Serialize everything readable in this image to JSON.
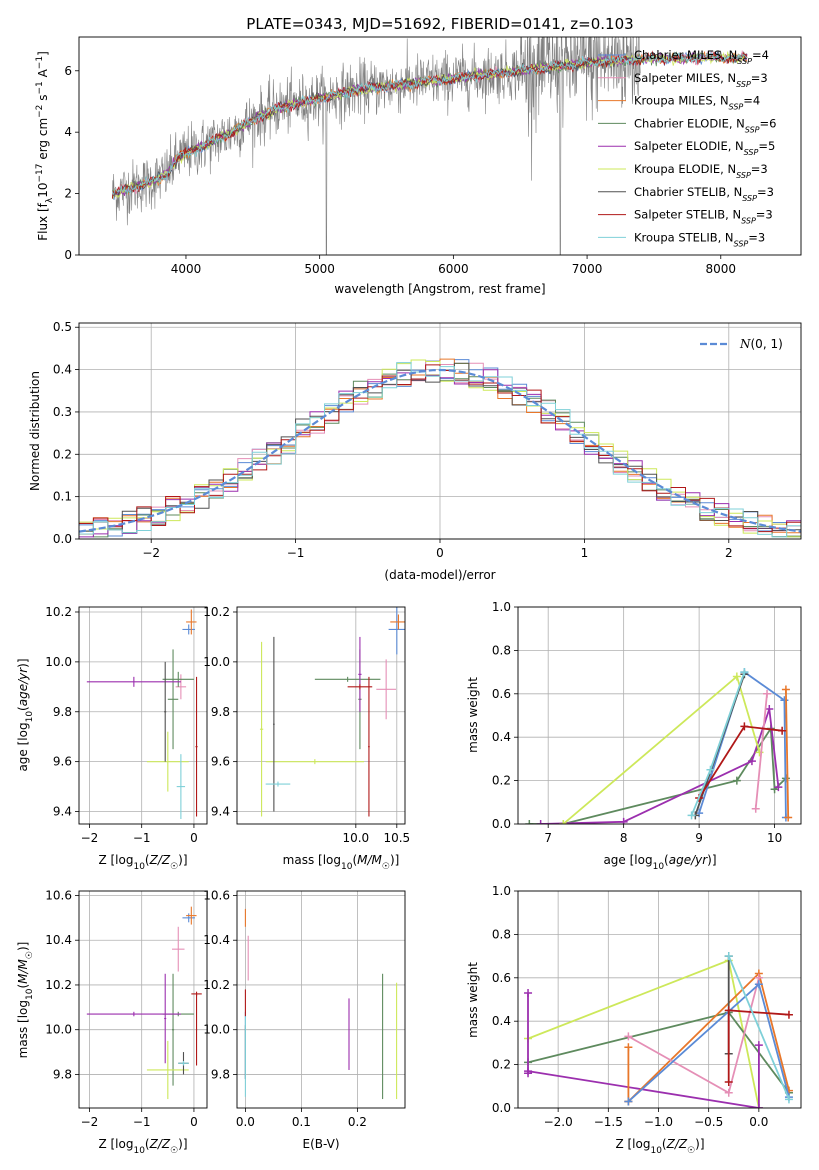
{
  "figure": {
    "title": "PLATE=0343, MJD=51692, FIBERID=0141, z=0.103"
  },
  "series_names": [
    "Chabrier MILES, N_SSP=4",
    "Salpeter MILES, N_SSP=3",
    "Kroupa MILES, N_SSP=4",
    "Chabrier ELODIE, N_SSP=6",
    "Salpeter ELODIE, N_SSP=5",
    "Kroupa ELODIE, N_SSP=3",
    "Chabrier STELIB, N_SSP=3",
    "Salpeter STELIB, N_SSP=3",
    "Kroupa STELIB, N_SSP=3"
  ],
  "colors": {
    "observed": "#808080",
    "chabrier_miles": "#5b8bd6",
    "salpeter_miles": "#e58fb6",
    "kroupa_miles": "#e8772a",
    "chabrier_elodie": "#5e8a5e",
    "salpeter_elodie": "#9b2fae",
    "kroupa_elodie": "#cde85a",
    "chabrier_stelib": "#505050",
    "salpeter_stelib": "#b01818",
    "kroupa_stelib": "#7fd0d8",
    "normal_curve": "#5b8bd6",
    "grid": "#b0b0b0"
  },
  "chart_data": [
    {
      "id": "spectrum",
      "type": "line",
      "xlabel": "wavelength [Angstrom, rest frame]",
      "ylabel": "Flux [f_λ10^-17 erg cm^-2 s^-1 A^-1]",
      "xlim": [
        3200,
        8600
      ],
      "ylim": [
        0,
        7.1
      ],
      "xticks": [
        4000,
        5000,
        6000,
        7000,
        8000
      ],
      "yticks": [
        0,
        2,
        4,
        6
      ],
      "grid": false,
      "legend": "right",
      "continuum_points": [
        [
          3450,
          2.0
        ],
        [
          3600,
          2.2
        ],
        [
          3750,
          2.4
        ],
        [
          3850,
          2.6
        ],
        [
          3950,
          3.2
        ],
        [
          4100,
          3.5
        ],
        [
          4300,
          3.9
        ],
        [
          4500,
          4.4
        ],
        [
          4700,
          4.8
        ],
        [
          4900,
          5.0
        ],
        [
          5100,
          5.2
        ],
        [
          5300,
          5.4
        ],
        [
          5500,
          5.5
        ],
        [
          5700,
          5.6
        ],
        [
          5900,
          5.7
        ],
        [
          6100,
          5.8
        ],
        [
          6300,
          5.9
        ],
        [
          6500,
          6.0
        ],
        [
          6700,
          6.1
        ],
        [
          6900,
          6.2
        ],
        [
          7100,
          6.3
        ],
        [
          7300,
          6.35
        ],
        [
          7500,
          6.4
        ],
        [
          7700,
          6.4
        ],
        [
          7900,
          6.45
        ],
        [
          8100,
          6.4
        ],
        [
          8200,
          6.45
        ]
      ],
      "observed_range": [
        3450,
        7400
      ],
      "model_range": [
        3450,
        8200
      ]
    },
    {
      "id": "residuals",
      "type": "histogram",
      "xlabel": "(data-model)/error",
      "ylabel": "Normed distribution",
      "xlim": [
        -2.5,
        2.5
      ],
      "ylim": [
        0,
        0.51
      ],
      "xticks": [
        -2,
        -1,
        0,
        1,
        2
      ],
      "yticks": [
        0.0,
        0.1,
        0.2,
        0.3,
        0.4,
        0.5
      ],
      "grid": true,
      "legend": "top-right",
      "legend_label": "N(0,1)",
      "bin_width": 0.1
    },
    {
      "id": "age_vs_Z",
      "type": "errorbar",
      "xlabel": "Z [log10(Z/Z☉)]",
      "ylabel": "age  [log10(age/yr)]",
      "xlim": [
        -2.2,
        0.25
      ],
      "ylim": [
        9.35,
        10.22
      ],
      "xticks": [
        -2,
        -1,
        0
      ],
      "yticks": [
        9.4,
        9.6,
        9.8,
        10.0,
        10.2
      ],
      "grid": true,
      "points": [
        {
          "s": "chabrier_miles",
          "x": -0.1,
          "xe": 0.12,
          "y": 10.13,
          "ye": 0.02
        },
        {
          "s": "salpeter_miles",
          "x": -0.25,
          "xe": 0.1,
          "y": 9.9,
          "ye": 0.05
        },
        {
          "s": "kroupa_miles",
          "x": -0.05,
          "xe": 0.1,
          "y": 10.16,
          "ye": 0.05
        },
        {
          "s": "chabrier_elodie",
          "x": -0.3,
          "xe": 0.3,
          "y": 9.93,
          "ye": 0.03
        },
        {
          "s": "chabrier_elodie",
          "x": -0.4,
          "xe": 0.1,
          "y": 9.85,
          "ye": 0.2
        },
        {
          "s": "salpeter_elodie",
          "x": -1.15,
          "xe": 0.9,
          "y": 9.92,
          "ye": 0.02
        },
        {
          "s": "kroupa_elodie",
          "x": -0.5,
          "xe": 0.4,
          "y": 9.6,
          "ye": 0.12
        },
        {
          "s": "chabrier_stelib",
          "x": -0.55,
          "xe": 0.02,
          "y": 9.8,
          "ye": 0.2
        },
        {
          "s": "salpeter_stelib",
          "x": 0.05,
          "xe": 0.02,
          "y": 9.66,
          "ye": 0.28
        },
        {
          "s": "kroupa_stelib",
          "x": -0.25,
          "xe": 0.08,
          "y": 9.5,
          "ye": 0.13
        }
      ]
    },
    {
      "id": "age_vs_mass",
      "type": "errorbar",
      "xlabel": "mass [log10(M/M☉)]",
      "ylabel": "",
      "xlim": [
        8.55,
        10.6
      ],
      "ylim": [
        9.35,
        10.22
      ],
      "xticks": [
        10.0,
        10.5
      ],
      "yticks": [
        9.4,
        9.6,
        9.8,
        10.0,
        10.2
      ],
      "grid": true,
      "points": [
        {
          "s": "chabrier_miles",
          "x": 10.5,
          "xe": 0.1,
          "y": 10.13,
          "ye": 0.1
        },
        {
          "s": "salpeter_miles",
          "x": 10.37,
          "xe": 0.12,
          "y": 9.89,
          "ye": 0.12
        },
        {
          "s": "kroupa_miles",
          "x": 10.52,
          "xe": 0.1,
          "y": 10.16,
          "ye": 0.03
        },
        {
          "s": "chabrier_elodie",
          "x": 9.9,
          "xe": 0.4,
          "y": 9.93,
          "ye": 0.01
        },
        {
          "s": "chabrier_elodie",
          "x": 10.05,
          "xe": 0.02,
          "y": 9.85,
          "ye": 0.2
        },
        {
          "s": "salpeter_elodie",
          "x": 10.05,
          "xe": 0.02,
          "y": 9.95,
          "ye": 0.15
        },
        {
          "s": "kroupa_elodie",
          "x": 9.5,
          "xe": 0.6,
          "y": 9.6,
          "ye": 0.01
        },
        {
          "s": "kroupa_elodie",
          "x": 8.85,
          "xe": 0.02,
          "y": 9.73,
          "ye": 0.35
        },
        {
          "s": "chabrier_stelib",
          "x": 9.0,
          "xe": 0.01,
          "y": 9.75,
          "ye": 0.35
        },
        {
          "s": "salpeter_stelib",
          "x": 10.05,
          "xe": 0.15,
          "y": 9.9,
          "ye": 0.01
        },
        {
          "s": "salpeter_stelib",
          "x": 10.16,
          "xe": 0.01,
          "y": 9.66,
          "ye": 0.28
        },
        {
          "s": "kroupa_stelib",
          "x": 9.05,
          "xe": 0.15,
          "y": 9.51,
          "ye": 0.01
        }
      ]
    },
    {
      "id": "massweight_vs_age",
      "type": "line",
      "xlabel": "age  [log10(age/yr)]",
      "ylabel": "mass weight",
      "xlim": [
        6.6,
        10.35
      ],
      "ylim": [
        0,
        1.0
      ],
      "xticks": [
        7,
        8,
        9,
        10
      ],
      "yticks": [
        0.0,
        0.2,
        0.4,
        0.6,
        0.8,
        1.0
      ],
      "grid": true,
      "series": [
        {
          "s": "chabrier_elodie",
          "points": [
            [
              6.75,
              0.0
            ],
            [
              7.2,
              0.0
            ],
            [
              9.5,
              0.2
            ],
            [
              9.95,
              0.44
            ],
            [
              10.0,
              0.16
            ],
            [
              10.15,
              0.21
            ]
          ]
        },
        {
          "s": "salpeter_elodie",
          "points": [
            [
              6.9,
              0.0
            ],
            [
              8.0,
              0.01
            ],
            [
              9.7,
              0.29
            ],
            [
              9.93,
              0.53
            ],
            [
              10.05,
              0.17
            ]
          ]
        },
        {
          "s": "kroupa_elodie",
          "points": [
            [
              7.2,
              0.0
            ],
            [
              9.5,
              0.68
            ],
            [
              9.8,
              0.33
            ]
          ]
        },
        {
          "s": "chabrier_miles",
          "points": [
            [
              9.0,
              0.05
            ],
            [
              9.6,
              0.7
            ],
            [
              10.13,
              0.57
            ],
            [
              10.15,
              0.03
            ]
          ]
        },
        {
          "s": "salpeter_miles",
          "points": [
            [
              9.75,
              0.07
            ],
            [
              9.9,
              0.6
            ]
          ]
        },
        {
          "s": "kroupa_miles",
          "points": [
            [
              10.15,
              0.62
            ],
            [
              10.18,
              0.03
            ]
          ]
        },
        {
          "s": "chabrier_stelib",
          "points": [
            [
              8.95,
              0.04
            ],
            [
              9.6,
              0.69
            ]
          ]
        },
        {
          "s": "salpeter_stelib",
          "points": [
            [
              9.0,
              0.12
            ],
            [
              9.6,
              0.45
            ],
            [
              10.1,
              0.43
            ]
          ]
        },
        {
          "s": "kroupa_stelib",
          "points": [
            [
              8.9,
              0.04
            ],
            [
              9.15,
              0.25
            ],
            [
              9.6,
              0.7
            ]
          ]
        }
      ]
    },
    {
      "id": "mass_vs_Z",
      "type": "errorbar",
      "xlabel": "Z [log10(Z/Z☉)]",
      "ylabel": "mass [log10(M/M☉)]",
      "xlim": [
        -2.2,
        0.25
      ],
      "ylim": [
        9.65,
        10.62
      ],
      "xticks": [
        -2,
        -1,
        0
      ],
      "yticks": [
        9.8,
        10.0,
        10.2,
        10.4,
        10.6
      ],
      "grid": true,
      "points": [
        {
          "s": "chabrier_miles",
          "x": -0.1,
          "xe": 0.12,
          "y": 10.5,
          "ye": 0.02
        },
        {
          "s": "salpeter_miles",
          "x": -0.3,
          "xe": 0.12,
          "y": 10.36,
          "ye": 0.1
        },
        {
          "s": "kroupa_miles",
          "x": -0.05,
          "xe": 0.1,
          "y": 10.51,
          "ye": 0.04
        },
        {
          "s": "chabrier_elodie",
          "x": -0.3,
          "xe": 0.3,
          "y": 10.07,
          "ye": 0.01
        },
        {
          "s": "chabrier_elodie",
          "x": -0.4,
          "xe": 0.02,
          "y": 10.0,
          "ye": 0.25
        },
        {
          "s": "salpeter_elodie",
          "x": -1.15,
          "xe": 0.9,
          "y": 10.07,
          "ye": 0.01
        },
        {
          "s": "salpeter_elodie",
          "x": -0.55,
          "xe": 0.02,
          "y": 10.05,
          "ye": 0.2
        },
        {
          "s": "kroupa_elodie",
          "x": -0.5,
          "xe": 0.4,
          "y": 9.82,
          "ye": 0.13
        },
        {
          "s": "chabrier_stelib",
          "x": -0.2,
          "xe": 0.1,
          "y": 9.85,
          "ye": 0.05
        },
        {
          "s": "salpeter_stelib",
          "x": 0.05,
          "xe": 0.1,
          "y": 10.16,
          "ye": 0.01
        },
        {
          "s": "salpeter_stelib",
          "x": 0.05,
          "xe": 0.01,
          "y": 10.0,
          "ye": 0.16
        },
        {
          "s": "kroupa_stelib",
          "x": -0.2,
          "xe": 0.1,
          "y": 9.85,
          "ye": 0.01
        }
      ]
    },
    {
      "id": "mass_vs_ebv",
      "type": "errorbar",
      "xlabel": "E(B-V)",
      "ylabel": "",
      "xlim": [
        -0.015,
        0.285
      ],
      "ylim": [
        9.65,
        10.62
      ],
      "xticks": [
        0.0,
        0.1,
        0.2
      ],
      "yticks": [
        9.8,
        10.0,
        10.2,
        10.4,
        10.6
      ],
      "grid": true,
      "points": [
        {
          "s": "chabrier_miles",
          "x": 0.0,
          "xe": 0.0,
          "y": 9.93,
          "ye": 0.15
        },
        {
          "s": "salpeter_miles",
          "x": 0.005,
          "xe": 0.0,
          "y": 10.32,
          "ye": 0.1
        },
        {
          "s": "kroupa_miles",
          "x": 0.0,
          "xe": 0.0,
          "y": 10.5,
          "ye": 0.04
        },
        {
          "s": "chabrier_elodie",
          "x": 0.245,
          "xe": 0.0,
          "y": 9.97,
          "ye": 0.28
        },
        {
          "s": "salpeter_elodie",
          "x": 0.185,
          "xe": 0.0,
          "y": 9.98,
          "ye": 0.16
        },
        {
          "s": "kroupa_elodie",
          "x": 0.27,
          "xe": 0.0,
          "y": 9.95,
          "ye": 0.26
        },
        {
          "s": "chabrier_stelib",
          "x": 0.0,
          "xe": 0.0,
          "y": 9.9,
          "ye": 0.12
        },
        {
          "s": "salpeter_stelib",
          "x": 0.0,
          "xe": 0.0,
          "y": 10.12,
          "ye": 0.06
        },
        {
          "s": "kroupa_stelib",
          "x": 0.0,
          "xe": 0.0,
          "y": 9.88,
          "ye": 0.18
        }
      ]
    },
    {
      "id": "massweight_vs_Z",
      "type": "line",
      "xlabel": "Z [log10(Z/Z☉)]",
      "ylabel": "mass weight",
      "xlim": [
        -2.4,
        0.42
      ],
      "ylim": [
        0,
        1.0
      ],
      "xticks": [
        -2.0,
        -1.5,
        -1.0,
        -0.5,
        0.0
      ],
      "yticks": [
        0.0,
        0.2,
        0.4,
        0.6,
        0.8,
        1.0
      ],
      "grid": true,
      "series": [
        {
          "s": "kroupa_elodie",
          "points": [
            [
              -2.3,
              0.32
            ],
            [
              -0.3,
              0.68
            ],
            [
              0.0,
              0.0
            ]
          ]
        },
        {
          "s": "chabrier_elodie",
          "points": [
            [
              -2.3,
              0.21
            ],
            [
              -0.3,
              0.44
            ],
            [
              0.3,
              0.07
            ]
          ]
        },
        {
          "s": "salpeter_elodie",
          "points": [
            [
              -2.3,
              0.17
            ],
            [
              0.0,
              0.0
            ]
          ]
        },
        {
          "s": "salpeter_elodie",
          "points": [
            [
              -2.3,
              0.53
            ],
            [
              -2.3,
              0.16
            ]
          ]
        },
        {
          "s": "kroupa_miles",
          "points": [
            [
              -1.3,
              0.03
            ],
            [
              0.0,
              0.62
            ],
            [
              0.3,
              0.08
            ]
          ]
        },
        {
          "s": "kroupa_miles",
          "points": [
            [
              -1.3,
              0.28
            ],
            [
              -1.3,
              0.03
            ]
          ]
        },
        {
          "s": "salpeter_miles",
          "points": [
            [
              -1.3,
              0.33
            ],
            [
              -0.3,
              0.07
            ],
            [
              0.0,
              0.6
            ]
          ]
        },
        {
          "s": "chabrier_miles",
          "points": [
            [
              -1.3,
              0.03
            ],
            [
              0.0,
              0.57
            ],
            [
              0.3,
              0.05
            ]
          ]
        },
        {
          "s": "chabrier_stelib",
          "points": [
            [
              -0.3,
              0.7
            ],
            [
              -0.3,
              0.25
            ]
          ]
        },
        {
          "s": "salpeter_stelib",
          "points": [
            [
              -0.3,
              0.12
            ],
            [
              -0.3,
              0.45
            ],
            [
              0.3,
              0.43
            ]
          ]
        },
        {
          "s": "kroupa_stelib",
          "points": [
            [
              -0.3,
              0.7
            ],
            [
              0.3,
              0.04
            ]
          ]
        },
        {
          "s": "salpeter_elodie",
          "points": [
            [
              0.0,
              0.29
            ],
            [
              0.0,
              0.0
            ]
          ]
        }
      ]
    }
  ]
}
